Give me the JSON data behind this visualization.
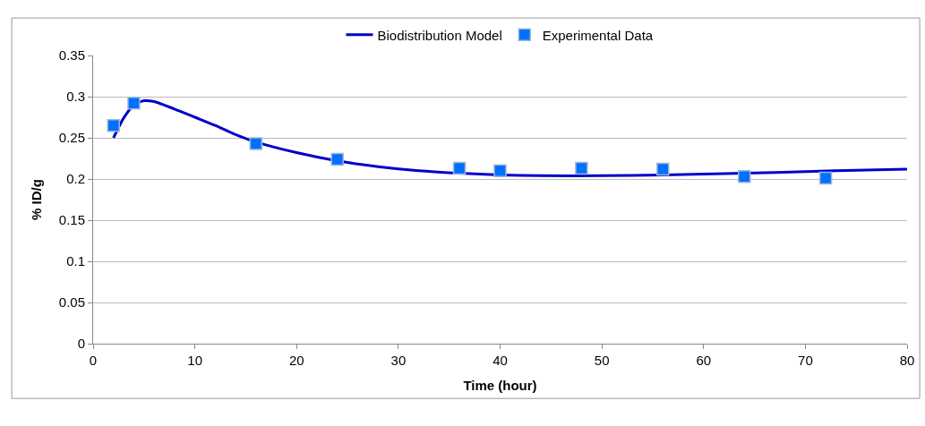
{
  "chart_data": {
    "type": "scatter",
    "xlabel": "Time (hour)",
    "ylabel": "% ID/g",
    "xlim": [
      0,
      80
    ],
    "xticks": [
      0,
      10,
      20,
      30,
      40,
      50,
      60,
      70,
      80
    ],
    "ylim": [
      0,
      0.35
    ],
    "yticks": [
      0,
      0.05,
      0.1,
      0.15,
      0.2,
      0.25,
      0.3,
      0.35
    ],
    "grid": "y",
    "legend": "top",
    "series": [
      {
        "name": "Biodistribution Model",
        "type": "line",
        "color": "#0000cc",
        "marker": "none",
        "line_style": "solid",
        "x": [
          2,
          3,
          4,
          5,
          6,
          8,
          10,
          12,
          14,
          16,
          20,
          24,
          28,
          32,
          36,
          40,
          44,
          50,
          56,
          60,
          64,
          70,
          76,
          80
        ],
        "values": [
          0.25,
          0.274,
          0.29,
          0.295,
          0.294,
          0.285,
          0.275,
          0.265,
          0.254,
          0.245,
          0.232,
          0.222,
          0.215,
          0.21,
          0.207,
          0.205,
          0.204,
          0.204,
          0.205,
          0.206,
          0.207,
          0.209,
          0.211,
          0.212
        ]
      },
      {
        "name": "Experimental Data",
        "color": "#0070ff",
        "marker": "square",
        "x": [
          2,
          4,
          16,
          24,
          36,
          40,
          48,
          56,
          64,
          72
        ],
        "values": [
          0.265,
          0.292,
          0.243,
          0.224,
          0.213,
          0.21,
          0.213,
          0.212,
          0.203,
          0.201
        ]
      }
    ]
  }
}
